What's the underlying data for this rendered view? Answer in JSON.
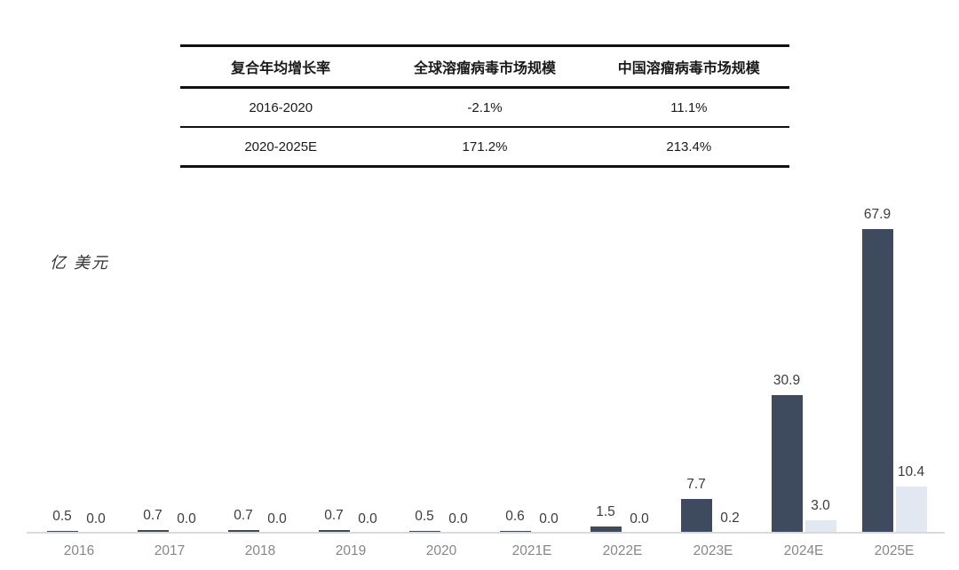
{
  "table": {
    "headers": [
      "复合年均增长率",
      "全球溶瘤病毒市场规模",
      "中国溶瘤病毒市场规模"
    ],
    "rows": [
      {
        "cells": [
          "2016-2020",
          "-2.1%",
          "11.1%"
        ]
      },
      {
        "cells": [
          "2020-2025E",
          "171.2%",
          "213.4%"
        ]
      }
    ]
  },
  "chart_data": {
    "type": "bar",
    "title": "",
    "ylabel": "亿 美元",
    "xlabel": "",
    "categories": [
      "2016",
      "2017",
      "2018",
      "2019",
      "2020",
      "2021E",
      "2022E",
      "2023E",
      "2024E",
      "2025E"
    ],
    "series": [
      {
        "name": "全球溶瘤病毒市场规模",
        "color": "#3e4a5e",
        "values": [
          0.5,
          0.7,
          0.7,
          0.7,
          0.5,
          0.6,
          1.5,
          7.7,
          30.9,
          67.9
        ]
      },
      {
        "name": "中国溶瘤病毒市场规模",
        "color": "#e2e8f2",
        "values": [
          0.0,
          0.0,
          0.0,
          0.0,
          0.0,
          0.0,
          0.0,
          0.2,
          3.0,
          10.4
        ]
      }
    ],
    "ylim": [
      0,
      70
    ],
    "grid": false,
    "legend_position": "none",
    "value_labels": true,
    "colors": {
      "axis_line": "#d9d9d9",
      "value_label_text": "#3c3c3c",
      "tick_label_text": "#878787",
      "table_line": "#111111"
    }
  }
}
